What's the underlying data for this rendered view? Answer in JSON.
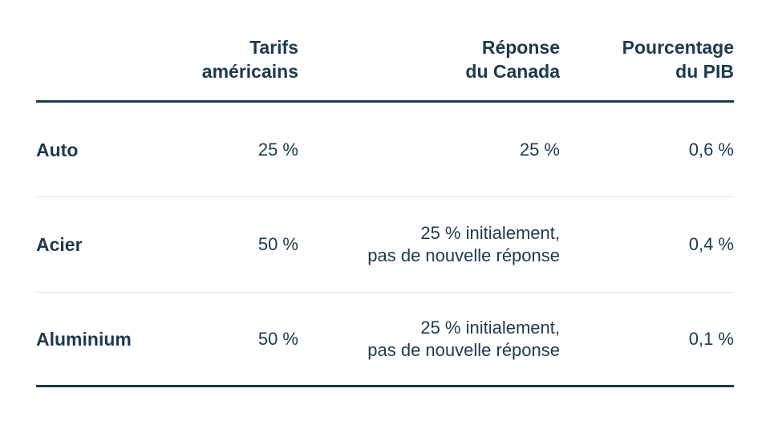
{
  "colors": {
    "text": "#1d3a4c",
    "heavy_rule": "#1d3a4c",
    "light_divider": "#e8e4dd",
    "background": "#ffffff"
  },
  "table": {
    "header": {
      "us_tariffs": "Tarifs\naméricains",
      "canada_response": "Réponse\ndu Canada",
      "gdp_share": "Pourcentage\ndu PIB"
    },
    "rows": [
      {
        "label": "Auto",
        "us_tariffs": "25 %",
        "canada_response": "25 %",
        "gdp_share": "0,6 %"
      },
      {
        "label": "Acier",
        "us_tariffs": "50 %",
        "canada_response": "25 % initialement,\npas de nouvelle réponse",
        "gdp_share": "0,4 %"
      },
      {
        "label": "Aluminium",
        "us_tariffs": "50 %",
        "canada_response": "25 % initialement,\npas de nouvelle réponse",
        "gdp_share": "0,1 %"
      }
    ]
  },
  "chart_data": {
    "type": "table",
    "columns": [
      "",
      "Tarifs américains",
      "Réponse du Canada",
      "Pourcentage du PIB"
    ],
    "rows": [
      [
        "Auto",
        "25 %",
        "25 %",
        "0,6 %"
      ],
      [
        "Acier",
        "50 %",
        "25 % initialement, pas de nouvelle réponse",
        "0,4 %"
      ],
      [
        "Aluminium",
        "50 %",
        "25 % initialement, pas de nouvelle réponse",
        "0,1 %"
      ]
    ]
  }
}
